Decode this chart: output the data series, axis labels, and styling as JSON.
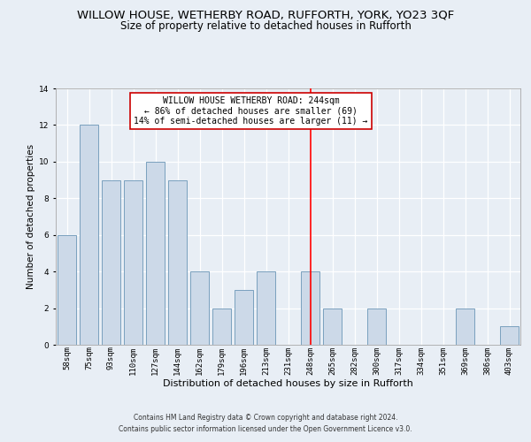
{
  "title": "WILLOW HOUSE, WETHERBY ROAD, RUFFORTH, YORK, YO23 3QF",
  "subtitle": "Size of property relative to detached houses in Rufforth",
  "xlabel": "Distribution of detached houses by size in Rufforth",
  "ylabel": "Number of detached properties",
  "footer_line1": "Contains HM Land Registry data © Crown copyright and database right 2024.",
  "footer_line2": "Contains public sector information licensed under the Open Government Licence v3.0.",
  "categories": [
    "58sqm",
    "75sqm",
    "93sqm",
    "110sqm",
    "127sqm",
    "144sqm",
    "162sqm",
    "179sqm",
    "196sqm",
    "213sqm",
    "231sqm",
    "248sqm",
    "265sqm",
    "282sqm",
    "300sqm",
    "317sqm",
    "334sqm",
    "351sqm",
    "369sqm",
    "386sqm",
    "403sqm"
  ],
  "values": [
    6,
    12,
    9,
    9,
    10,
    9,
    4,
    2,
    3,
    4,
    0,
    4,
    2,
    0,
    2,
    0,
    0,
    0,
    2,
    0,
    1
  ],
  "bar_color": "#ccd9e8",
  "bar_edge_color": "#7aa0be",
  "red_line_index": 11,
  "annotation_title": "WILLOW HOUSE WETHERBY ROAD: 244sqm",
  "annotation_line2": "← 86% of detached houses are smaller (69)",
  "annotation_line3": "14% of semi-detached houses are larger (11) →",
  "ylim": [
    0,
    14
  ],
  "yticks": [
    0,
    2,
    4,
    6,
    8,
    10,
    12,
    14
  ],
  "background_color": "#e8eef5",
  "plot_bg_color": "#e8eef5",
  "grid_color": "#ffffff",
  "title_fontsize": 9.5,
  "subtitle_fontsize": 8.5,
  "xlabel_fontsize": 8,
  "ylabel_fontsize": 7.5,
  "tick_fontsize": 6.5,
  "footer_fontsize": 5.5,
  "annot_fontsize": 7
}
